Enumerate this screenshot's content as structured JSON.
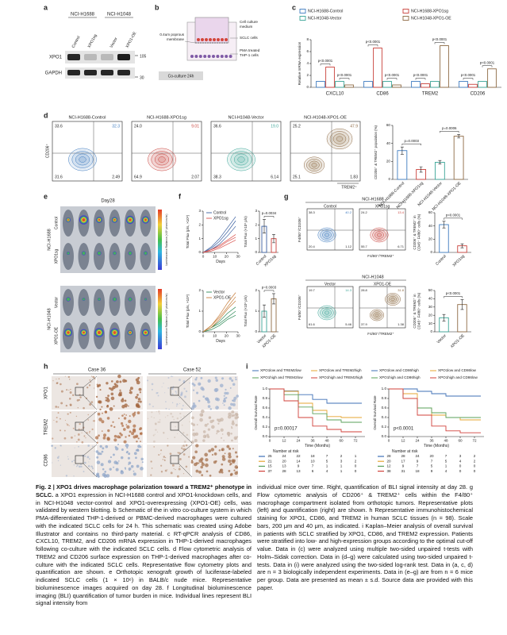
{
  "panels": [
    "a",
    "b",
    "c",
    "d",
    "e",
    "f",
    "g",
    "h",
    "i"
  ],
  "a": {
    "lines": [
      "NCI-H1688",
      "NCI-H1048"
    ],
    "lanes": [
      "Control",
      "XPO1sg",
      "Vector",
      "XPO1-OE"
    ],
    "proteins": [
      "XPO1",
      "GAPDH"
    ],
    "markers": [
      "105",
      "30"
    ]
  },
  "b": {
    "labels": [
      "0.4um poprous",
      "membrane",
      "Cell culture",
      "medium",
      "SCLC cells",
      "PMA treated",
      "THP-1 cells",
      "Co-culture 24h"
    ]
  },
  "d": {
    "y_label": "CD206⁺",
    "x_label": "TREM2⁺",
    "plots": [
      {
        "title": "NCI-H1688-Control",
        "color": "#3f7cc0",
        "quadrants": [
          "33.6",
          "32.3",
          "31.6",
          "2.49"
        ]
      },
      {
        "title": "NCI-H1688-XPO1sg",
        "color": "#c9403a",
        "quadrants": [
          "24.0",
          "9.01",
          "64.9",
          "2.07"
        ]
      },
      {
        "title": "NCI-H1048-Vector",
        "color": "#3aa597",
        "quadrants": [
          "36.6",
          "19.0",
          "38.3",
          "6.14"
        ]
      },
      {
        "title": "NCI-H1048-XPO1-OE",
        "color": "#8e6a44",
        "quadrants": [
          "25.2",
          "47.9",
          "25.1",
          "1.83"
        ]
      }
    ]
  },
  "e": {
    "title": "Day28",
    "colorbar_label": "Luminescence Radiance (×10⁶ p/sec/cm²/sr)",
    "groups": [
      {
        "line": "NCI-H1688",
        "rows": [
          "Control",
          "XPO1sg"
        ]
      },
      {
        "line": "NCI-H1048",
        "rows": [
          "Vector",
          "XPO1-OE"
        ]
      }
    ]
  },
  "g": {
    "y_label": "F4/80⁺/CD206⁺",
    "x_label": "F4/80⁺/TREM2⁺",
    "groups": [
      {
        "title": "NCI-H1688",
        "plots": [
          {
            "label": "Control",
            "color": "#3f7cc0",
            "quadrants": [
              "38.3",
              "40.2",
              "20.4",
              "1.12"
            ]
          },
          {
            "label": "XPO1sg",
            "color": "#c9403a",
            "quadrants": [
              "24.2",
              "13.4",
              "55.7",
              "6.71"
            ]
          }
        ]
      },
      {
        "title": "NCI-H1048",
        "plots": [
          {
            "label": "Vector",
            "color": "#3aa597",
            "quadrants": [
              "19.7",
              "14.3",
              "61.6",
              "5.46"
            ]
          },
          {
            "label": "XPO1-OE",
            "color": "#8e6a44",
            "quadrants": [
              "28.8",
              "31.8",
              "37.9",
              "1.38"
            ]
          }
        ]
      }
    ]
  },
  "h": {
    "cases": [
      "Case 36",
      "Case 52"
    ],
    "rows": [
      "XPO1",
      "TREM2",
      "CD86"
    ]
  },
  "chart_data": [
    {
      "type": "grouped_bar",
      "ylabel": "Relative mRNA expression",
      "categories": [
        "CXCL10",
        "CD86",
        "TREM2",
        "CD206"
      ],
      "ylim": [
        0,
        8
      ],
      "yticks": [
        0,
        2,
        4,
        6,
        8
      ],
      "series": [
        {
          "name": "NCI-H1688-Control",
          "color": "#3f7cc0",
          "values": [
            1,
            1,
            1,
            1
          ]
        },
        {
          "name": "NCI-H1688-XPO1sg",
          "color": "#c9403a",
          "values": [
            3.4,
            6.6,
            0.6,
            0.5
          ]
        },
        {
          "name": "NCI-H1048-Vector",
          "color": "#3aa597",
          "values": [
            1,
            1,
            1,
            1
          ]
        },
        {
          "name": "NCI-H1048-XPO1-OE",
          "color": "#8e6a44",
          "values": [
            0.4,
            0.4,
            7.0,
            3.1
          ]
        }
      ],
      "annotations": [
        "p<0.0001",
        "p<0.0001",
        "p<0.0001",
        "p<0.0001",
        "p<0.0001",
        "p<0.0001",
        "p<0.0001",
        "p<0.0001"
      ]
    },
    {
      "type": "dot_bar",
      "ylabel": [
        "CD206⁺ & TREM2⁺ population (%)"
      ],
      "categories": [
        "NCI-H1688-Control",
        "NCI-H1688-XPO1sg",
        "NCI-H1048-Vector",
        "NCI-H1048-XPO1-OE"
      ],
      "values": [
        32,
        11,
        19,
        48
      ],
      "errors": [
        4,
        3,
        2,
        2
      ],
      "colors": [
        "#3f7cc0",
        "#c9403a",
        "#3aa597",
        "#8e6a44"
      ],
      "ylim": [
        0,
        60
      ],
      "yticks": [
        0,
        20,
        40,
        60
      ],
      "annotations": [
        "p=0.0003",
        "p=0.0006"
      ]
    },
    {
      "type": "line",
      "ylabel": "Total Flux (p/s, ×10⁸)",
      "xlabel": "Days",
      "x": [
        0,
        7,
        14,
        21,
        28
      ],
      "xlim": [
        0,
        30
      ],
      "xticks": [
        0,
        10,
        20,
        30
      ],
      "ylim": [
        0,
        3
      ],
      "yticks": [
        0,
        1,
        2,
        3
      ],
      "series": [
        {
          "name": "Control",
          "color": "#3a5fa0",
          "values": [
            [
              0,
              0.3,
              0.8,
              1.5,
              2.3
            ],
            [
              0,
              0.4,
              1.0,
              1.8,
              2.6
            ],
            [
              0,
              0.2,
              0.6,
              1.2,
              1.9
            ]
          ]
        },
        {
          "name": "XPO1sg",
          "color": "#d9534f",
          "values": [
            [
              0,
              0.2,
              0.4,
              0.8,
              1.1
            ],
            [
              0,
              0.1,
              0.3,
              0.6,
              0.9
            ],
            [
              0,
              0.2,
              0.5,
              0.9,
              1.3
            ]
          ]
        }
      ]
    },
    {
      "type": "dot_bar",
      "ylabel": [
        "Total Flux (×10⁸ p/s)"
      ],
      "categories": [
        "Control",
        "XPO1sg"
      ],
      "values": [
        1.9,
        1.0
      ],
      "errors": [
        0.5,
        0.3
      ],
      "colors": [
        "#3a5fa0",
        "#c9403a"
      ],
      "ylim": [
        0,
        3
      ],
      "yticks": [
        0,
        1,
        2,
        3
      ],
      "annotations": [
        "p=0.0034"
      ]
    },
    {
      "type": "line",
      "ylabel": "Total Flux (p/s, ×10⁸)",
      "xlabel": "Days",
      "x": [
        0,
        7,
        14,
        21,
        28
      ],
      "xlim": [
        0,
        30
      ],
      "xticks": [
        0,
        10,
        20,
        30
      ],
      "ylim": [
        0,
        2
      ],
      "yticks": [
        0,
        1,
        2
      ],
      "series": [
        {
          "name": "Vector",
          "color": "#2e8b57",
          "values": [
            [
              0,
              0.2,
              0.4,
              0.7,
              1.0
            ],
            [
              0,
              0.1,
              0.3,
              0.6,
              0.8
            ],
            [
              0,
              0.2,
              0.5,
              0.9,
              1.2
            ]
          ]
        },
        {
          "name": "XPO1-OE",
          "color": "#c77d3a",
          "values": [
            [
              0,
              0.3,
              0.7,
              1.2,
              1.7
            ],
            [
              0,
              0.3,
              0.8,
              1.4,
              1.9
            ],
            [
              0,
              0.2,
              0.6,
              1.1,
              1.5
            ]
          ]
        }
      ]
    },
    {
      "type": "dot_bar",
      "ylabel": [
        "Total Flux (×10⁸ p/s)"
      ],
      "categories": [
        "Vector",
        "XPO1-OE"
      ],
      "values": [
        1.0,
        1.6
      ],
      "errors": [
        0.3,
        0.25
      ],
      "colors": [
        "#3aa597",
        "#8e6a44"
      ],
      "ylim": [
        0,
        2
      ],
      "yticks": [
        0,
        1,
        2
      ],
      "annotations": [
        "p=0.0003"
      ]
    },
    {
      "type": "dot_bar",
      "ylabel": [
        "CD206⁺ & TREM2⁺ in",
        "CD45⁺ F4/80⁺ cells (%)"
      ],
      "categories": [
        "Control",
        "XPO1sg"
      ],
      "values": [
        42,
        10
      ],
      "errors": [
        5,
        3
      ],
      "colors": [
        "#3f7cc0",
        "#c9403a"
      ],
      "ylim": [
        0,
        60
      ],
      "yticks": [
        0,
        20,
        40,
        60
      ],
      "annotations": [
        "p<0.0001"
      ]
    },
    {
      "type": "dot_bar",
      "ylabel": [
        "CD206⁺ & TREM2⁺ in",
        "CD45⁺ F4/80⁺ cells (%)"
      ],
      "categories": [
        "Vector",
        "XPO1-OE"
      ],
      "values": [
        17,
        33
      ],
      "errors": [
        4,
        6
      ],
      "colors": [
        "#3aa597",
        "#8e6a44"
      ],
      "ylim": [
        0,
        50
      ],
      "yticks": [
        0,
        10,
        20,
        30,
        40,
        50
      ],
      "annotations": [
        "p<0.0001"
      ]
    },
    {
      "type": "km",
      "ylabel": "Overall Survival Rate",
      "xlabel": "Time (Months)",
      "x": [
        0,
        12,
        24,
        36,
        48,
        60,
        72
      ],
      "xlim": [
        0,
        80
      ],
      "xticks": [
        0,
        12,
        24,
        36,
        48,
        60,
        72
      ],
      "ylim": [
        0,
        1
      ],
      "yticks": [
        {
          "value": 0,
          "label": "0.0"
        },
        0.2,
        0.4,
        0.6,
        0.8,
        {
          "value": 1,
          "label": "1.0"
        }
      ],
      "series": [
        {
          "name": "XPO1low and TREM2low",
          "color": "#3d6fb6",
          "values": [
            1,
            0.96,
            0.88,
            0.78,
            0.7,
            0.7,
            0.7
          ]
        },
        {
          "name": "XPO1low and TREM2high",
          "color": "#e6a532",
          "values": [
            1,
            0.95,
            0.7,
            0.55,
            0.42,
            0.4,
            0.4
          ]
        },
        {
          "name": "XPO1high and TREM2low",
          "color": "#5aa05a",
          "values": [
            1,
            0.88,
            0.62,
            0.48,
            0.35,
            0.3,
            0.3
          ]
        },
        {
          "name": "XPO1high and TREM2high",
          "color": "#d0413a",
          "values": [
            1,
            0.75,
            0.4,
            0.22,
            0.15,
            0.1,
            0.1
          ]
        }
      ],
      "annotations": [
        "p=0.00017"
      ],
      "risk_title": "Number at risk",
      "risk_table": [
        [
          25,
          24,
          22,
          18,
          7,
          2,
          1
        ],
        [
          21,
          20,
          14,
          10,
          5,
          3,
          2
        ],
        [
          15,
          13,
          9,
          7,
          1,
          1,
          0
        ],
        [
          37,
          28,
          13,
          6,
          4,
          1,
          0
        ]
      ]
    },
    {
      "type": "km",
      "ylabel": "Overall Survival Rate",
      "xlabel": "Time (Months)",
      "x": [
        0,
        12,
        24,
        36,
        48,
        60,
        72
      ],
      "xlim": [
        0,
        80
      ],
      "xticks": [
        0,
        12,
        24,
        36,
        48,
        60,
        72
      ],
      "ylim": [
        0,
        1
      ],
      "yticks": [
        {
          "value": 0,
          "label": "0.0"
        },
        0.2,
        0.4,
        0.6,
        0.8,
        {
          "value": 1,
          "label": "1.0"
        }
      ],
      "series": [
        {
          "name": "XPO1low and CD86high",
          "color": "#3d6fb6",
          "values": [
            1,
            1,
            0.95,
            0.9,
            0.85,
            0.85,
            0.85
          ]
        },
        {
          "name": "XPO1low and CD86low",
          "color": "#e6a532",
          "values": [
            1,
            0.9,
            0.6,
            0.45,
            0.4,
            0.35,
            0.35
          ]
        },
        {
          "name": "XPO1high and CD86high",
          "color": "#5aa05a",
          "values": [
            1,
            0.8,
            0.6,
            0.5,
            0.4,
            0.4,
            0.4
          ]
        },
        {
          "name": "XPO1high and CD86low",
          "color": "#d0413a",
          "values": [
            1,
            0.8,
            0.45,
            0.22,
            0.12,
            0.08,
            0.08
          ]
        }
      ],
      "annotations": [
        "p<0.0001"
      ],
      "risk_title": "Number at risk",
      "risk_table": [
        [
          28,
          28,
          24,
          20,
          7,
          3,
          2
        ],
        [
          20,
          17,
          9,
          7,
          5,
          4,
          2
        ],
        [
          12,
          9,
          7,
          5,
          1,
          0,
          0
        ],
        [
          38,
          31,
          18,
          9,
          4,
          0,
          0
        ]
      ]
    }
  ],
  "caption": {
    "title": "Fig. 2 | XPO1 drives macrophage polarization toward a TREM2⁺ phenotype in SCLC.",
    "left": "a XPO1 expression in NCI-H1688 control and XPO1-knockdown cells, and in NCI-H1048 vector-control and XPO1-overexpressing (XPO1-OE) cells, was validated by western blotting. b Schematic of the in vitro co-culture system in which PMA-differentiated THP-1-derived or PBMC-derived macrophages were cultured with the indicated SCLC cells for 24 h. This schematic was created using Adobe Illustrator and contains no third-party material. c RT-qPCR analysis of CD86, CXCL10, TREM2, and CD206 mRNA expression in THP-1-derived macrophages following co-culture with the indicated SCLC cells. d Flow cytometric analysis of TREM2 and CD206 surface expression on THP-1-derived macrophages after co-culture with the indicated SCLC cells. Representative flow cytometry plots and quantification are shown. e Orthotopic xenograft growth of luciferase-labeled indicated SCLC cells (1 × 10⁶) in BALB/c nude mice. Representative bioluminescence images acquired on day 28. f Longitudinal bioluminescence imaging (BLI) quantification of tumor burden in mice. Individual lines represent BLI signal intensity from",
    "right": "individual mice over time. Right, quantification of BLI signal intensity at day 28. g Flow cytometric analysis of CD206⁺ & TREM2⁺ cells within the F4/80⁺ macrophage compartment isolated from orthotopic tumors. Representative plots (left) and quantification (right) are shown. h Representative immunohistochemical staining for XPO1, CD86, and TREM2 in human SCLC tissues (n = 98). Scale bars, 200 μm and 40 μm, as indicated. i Kaplan–Meier analysis of overall survival in patients with SCLC stratified by XPO1, CD86, and TREM2 expression. Patients were stratified into low- and high-expression groups according to the optimal cut-off value. Data in (c) were analyzed using multiple two-sided unpaired t-tests with Holm–Sidak correction. Data in (d–g) were calculated using two-sided unpaired t-tests. Data in (i) were analyzed using the two-sided log-rank test. Data in (a, c, d) are n = 3 biologically independent experiments. Data in (e–g) are from n = 6 mice per group. Data are presented as mean ± s.d. Source data are provided with this paper."
  }
}
